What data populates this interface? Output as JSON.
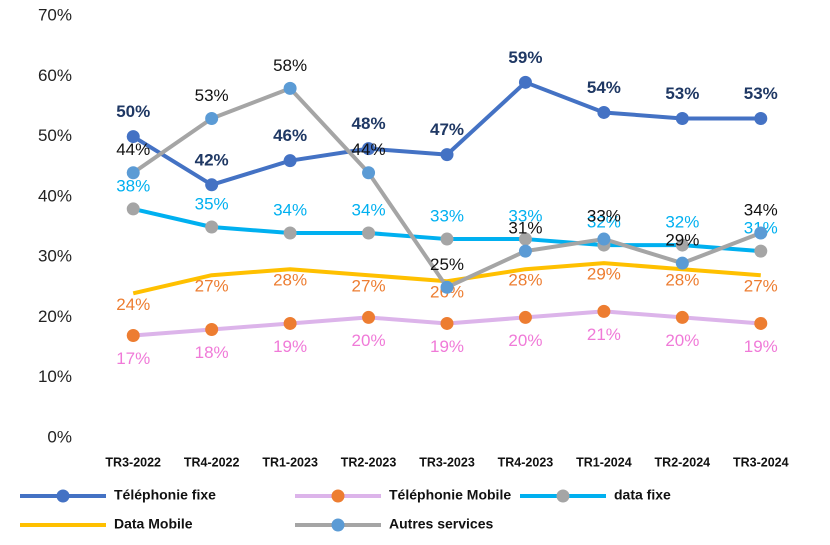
{
  "chart_data": {
    "type": "line",
    "categories": [
      "TR3-2022",
      "TR4-2022",
      "TR1-2023",
      "TR2-2023",
      "TR3-2023",
      "TR4-2023",
      "TR1-2024",
      "TR2-2024",
      "TR3-2024"
    ],
    "ylim": [
      0,
      70
    ],
    "yticks": [
      {
        "value": 0,
        "label": "0%"
      },
      {
        "value": 10,
        "label": "10%"
      },
      {
        "value": 20,
        "label": "20%"
      },
      {
        "value": 30,
        "label": "30%"
      },
      {
        "value": 40,
        "label": "40%"
      },
      {
        "value": 50,
        "label": "50%"
      },
      {
        "value": 60,
        "label": "60%"
      },
      {
        "value": 70,
        "label": "70%"
      }
    ],
    "grid": false,
    "legend": "bottom",
    "series": [
      {
        "name": "Téléphonie fixe",
        "color": "#4472c4",
        "marker_color": "#4472c4",
        "label_color": "#1f3864",
        "values": [
          50,
          42,
          46,
          48,
          47,
          59,
          54,
          53,
          53
        ],
        "value_labels": [
          "50%",
          "42%",
          "46%",
          "48%",
          "47%",
          "59%",
          "54%",
          "53%",
          "53%"
        ]
      },
      {
        "name": "Téléphonie Mobile",
        "color": "#dcb4ea",
        "marker_color": "#ed7d31",
        "label_color": "#f07ad8",
        "values": [
          17,
          18,
          19,
          20,
          19,
          20,
          21,
          20,
          19
        ],
        "value_labels": [
          "17%",
          "18%",
          "19%",
          "20%",
          "19%",
          "20%",
          "21%",
          "20%",
          "19%"
        ]
      },
      {
        "name": "data fixe",
        "color": "#00b0f0",
        "marker_color": "#a5a5a5",
        "label_color": "#00b0f0",
        "values": [
          38,
          35,
          34,
          34,
          33,
          33,
          32,
          32,
          31
        ],
        "value_labels": [
          "38%",
          "35%",
          "34%",
          "34%",
          "33%",
          "33%",
          "32%",
          "32%",
          "31%"
        ]
      },
      {
        "name": "Data Mobile",
        "color": "#ffc000",
        "marker_color": null,
        "label_color": "#ed7d31",
        "values": [
          24,
          27,
          28,
          27,
          26,
          28,
          29,
          28,
          27
        ],
        "value_labels": [
          "24%",
          "27%",
          "28%",
          "27%",
          "26%",
          "28%",
          "29%",
          "28%",
          "27%"
        ]
      },
      {
        "name": "Autres services",
        "color": "#a5a5a5",
        "marker_color": "#5b9bd5",
        "label_color": "#111111",
        "values": [
          44,
          53,
          58,
          44,
          25,
          31,
          33,
          29,
          34
        ],
        "value_labels": [
          "44%",
          "53%",
          "58%",
          "44%",
          "25%",
          "31%",
          "33%",
          "29%",
          "34%"
        ]
      }
    ]
  }
}
